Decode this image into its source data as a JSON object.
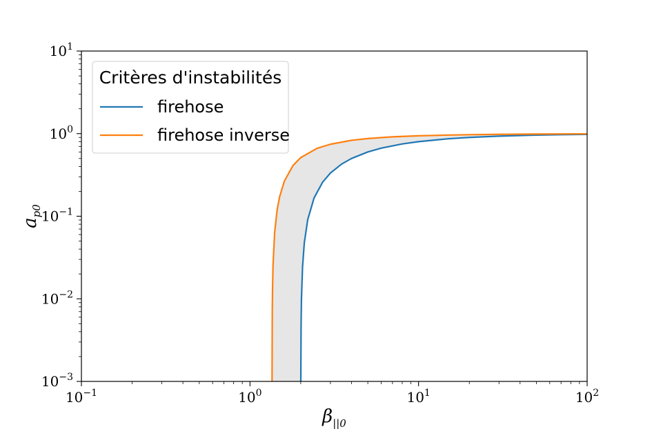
{
  "chart_data": {
    "type": "line",
    "xscale": "log",
    "yscale": "log",
    "xlim": [
      0.1,
      100
    ],
    "ylim": [
      0.001,
      10
    ],
    "xlabel": {
      "symbol": "β",
      "subscript": "||0"
    },
    "ylabel": {
      "symbol": "a",
      "subscript": "p0"
    },
    "x_ticks": [
      {
        "base": "10",
        "exp": "−1",
        "value": 0.1
      },
      {
        "base": "10",
        "exp": "0",
        "value": 1
      },
      {
        "base": "10",
        "exp": "1",
        "value": 10
      },
      {
        "base": "10",
        "exp": "2",
        "value": 100
      }
    ],
    "y_ticks": [
      {
        "base": "10",
        "exp": "−3",
        "value": 0.001
      },
      {
        "base": "10",
        "exp": "−2",
        "value": 0.01
      },
      {
        "base": "10",
        "exp": "−1",
        "value": 0.1
      },
      {
        "base": "10",
        "exp": "0",
        "value": 1
      },
      {
        "base": "10",
        "exp": "1",
        "value": 10
      }
    ],
    "legend": {
      "title": "Critères d'instabilités",
      "position": "upper-left"
    },
    "series": [
      {
        "name": "firehose",
        "color": "#1f77b4",
        "x": [
          2.002,
          2.01,
          2.02,
          2.05,
          2.1,
          2.2,
          2.4,
          2.7,
          3,
          3.5,
          4,
          5,
          6,
          8,
          10,
          15,
          20,
          30,
          50,
          70,
          100
        ],
        "y": [
          0.001,
          0.005,
          0.01,
          0.0244,
          0.0476,
          0.0909,
          0.1667,
          0.2593,
          0.3333,
          0.4286,
          0.5,
          0.6,
          0.6667,
          0.75,
          0.8,
          0.8667,
          0.9,
          0.9333,
          0.96,
          0.9714,
          0.98
        ]
      },
      {
        "name": "firehose inverse",
        "color": "#ff7f0e",
        "x": [
          1.3514,
          1.356,
          1.36,
          1.37,
          1.4,
          1.45,
          1.5,
          1.6,
          1.8,
          2,
          2.5,
          3,
          4,
          5,
          7,
          10,
          15,
          20,
          30,
          50,
          100
        ],
        "y": [
          0.001,
          0.0072,
          0.0125,
          0.0257,
          0.0632,
          0.1208,
          0.1733,
          0.2667,
          0.4115,
          0.5125,
          0.664,
          0.7441,
          0.8299,
          0.8723,
          0.9144,
          0.9412,
          0.961,
          0.9707,
          0.9805,
          0.9883,
          0.9941
        ]
      }
    ],
    "fill_between": {
      "color": "#e6e6e6",
      "between": [
        "firehose",
        "firehose inverse"
      ]
    },
    "grid": false
  }
}
